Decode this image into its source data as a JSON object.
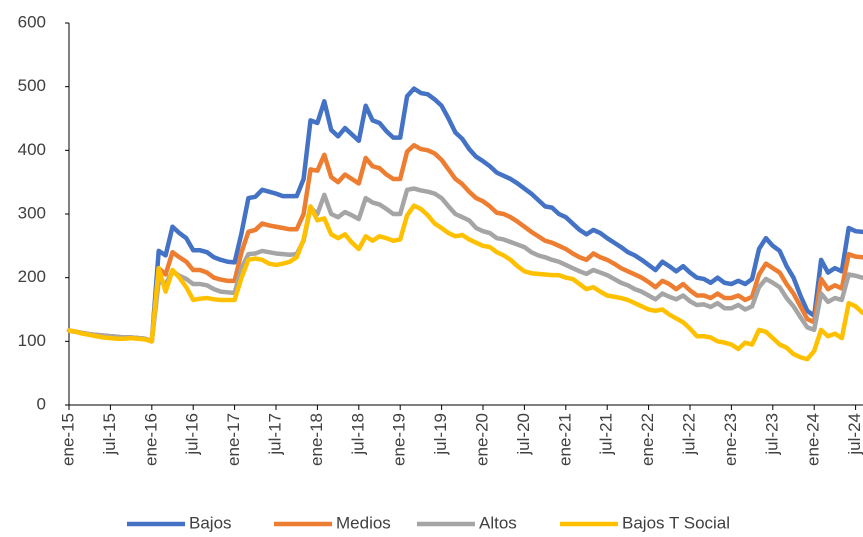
{
  "chart_data": {
    "type": "line",
    "categories": [
      "ene-15",
      null,
      null,
      null,
      null,
      null,
      "jul-15",
      null,
      null,
      null,
      null,
      null,
      "ene-16",
      null,
      null,
      null,
      null,
      null,
      "jul-16",
      null,
      null,
      null,
      null,
      null,
      "ene-17",
      null,
      null,
      null,
      null,
      null,
      "jul-17",
      null,
      null,
      null,
      null,
      null,
      "ene-18",
      null,
      null,
      null,
      null,
      null,
      "jul-18",
      null,
      null,
      null,
      null,
      null,
      "ene-19",
      null,
      null,
      null,
      null,
      null,
      "jul-19",
      null,
      null,
      null,
      null,
      null,
      "ene-20",
      null,
      null,
      null,
      null,
      null,
      "jul-20",
      null,
      null,
      null,
      null,
      null,
      "ene-21",
      null,
      null,
      null,
      null,
      null,
      "jul-21",
      null,
      null,
      null,
      null,
      null,
      "ene-22",
      null,
      null,
      null,
      null,
      null,
      "jul-22",
      null,
      null,
      null,
      null,
      null,
      "ene-23",
      null,
      null,
      null,
      null,
      null,
      "jul-23",
      null,
      null,
      null,
      null,
      null,
      "ene-24",
      null,
      null,
      null,
      null,
      null,
      "jul-24",
      null
    ],
    "series": [
      {
        "name": "Bajos",
        "color": "#4472c4",
        "values": [
          117,
          115,
          113,
          111,
          110,
          109,
          108,
          107,
          106,
          106,
          105,
          104,
          100,
          242,
          235,
          280,
          270,
          262,
          243,
          243,
          240,
          232,
          228,
          225,
          224,
          270,
          325,
          327,
          338,
          335,
          332,
          328,
          328,
          328,
          355,
          447,
          443,
          477,
          432,
          422,
          435,
          425,
          415,
          470,
          447,
          443,
          430,
          420,
          420,
          485,
          497,
          490,
          488,
          480,
          470,
          450,
          428,
          418,
          402,
          390,
          383,
          375,
          365,
          360,
          355,
          348,
          340,
          332,
          322,
          312,
          310,
          300,
          295,
          285,
          275,
          268,
          275,
          270,
          262,
          255,
          248,
          240,
          235,
          228,
          220,
          212,
          225,
          218,
          210,
          218,
          208,
          200,
          198,
          192,
          200,
          192,
          190,
          195,
          190,
          198,
          245,
          262,
          250,
          242,
          218,
          200,
          172,
          148,
          140,
          228,
          208,
          215,
          210,
          278,
          273,
          272
        ]
      },
      {
        "name": "Medios",
        "color": "#ed7d31",
        "values": [
          117,
          115,
          113,
          111,
          110,
          109,
          108,
          107,
          106,
          106,
          105,
          104,
          100,
          215,
          205,
          240,
          232,
          225,
          212,
          212,
          208,
          200,
          197,
          195,
          195,
          240,
          272,
          275,
          285,
          282,
          280,
          278,
          276,
          276,
          300,
          370,
          368,
          393,
          358,
          350,
          362,
          355,
          348,
          388,
          375,
          372,
          362,
          355,
          355,
          398,
          408,
          402,
          400,
          395,
          385,
          370,
          355,
          347,
          335,
          325,
          320,
          312,
          302,
          300,
          295,
          288,
          280,
          272,
          265,
          258,
          255,
          250,
          245,
          238,
          232,
          228,
          238,
          232,
          228,
          222,
          215,
          210,
          205,
          200,
          193,
          185,
          195,
          190,
          182,
          190,
          180,
          172,
          172,
          168,
          175,
          168,
          168,
          172,
          165,
          170,
          205,
          222,
          215,
          208,
          190,
          175,
          155,
          135,
          130,
          198,
          182,
          188,
          183,
          237,
          233,
          232
        ]
      },
      {
        "name": "Altos",
        "color": "#a5a5a5",
        "values": [
          117,
          115,
          113,
          111,
          110,
          109,
          108,
          107,
          106,
          106,
          105,
          104,
          100,
          195,
          190,
          210,
          203,
          198,
          190,
          190,
          188,
          182,
          178,
          177,
          176,
          215,
          237,
          238,
          242,
          240,
          238,
          237,
          236,
          237,
          258,
          310,
          300,
          330,
          300,
          295,
          303,
          298,
          292,
          325,
          318,
          315,
          308,
          300,
          300,
          338,
          340,
          337,
          335,
          332,
          325,
          312,
          300,
          295,
          290,
          278,
          273,
          270,
          262,
          260,
          256,
          252,
          248,
          240,
          235,
          232,
          228,
          225,
          220,
          215,
          210,
          206,
          212,
          208,
          204,
          198,
          192,
          188,
          182,
          178,
          172,
          166,
          175,
          170,
          166,
          172,
          163,
          157,
          158,
          154,
          160,
          152,
          152,
          157,
          150,
          155,
          185,
          198,
          192,
          185,
          168,
          155,
          138,
          122,
          118,
          175,
          162,
          168,
          165,
          205,
          203,
          200
        ]
      },
      {
        "name": "Bajos T Social",
        "color": "#ffc000",
        "values": [
          117,
          115,
          112,
          110,
          108,
          106,
          105,
          104,
          104,
          105,
          104,
          103,
          100,
          215,
          178,
          212,
          200,
          185,
          165,
          167,
          168,
          166,
          165,
          165,
          165,
          200,
          228,
          230,
          228,
          222,
          220,
          222,
          225,
          232,
          260,
          312,
          290,
          293,
          268,
          262,
          268,
          255,
          245,
          265,
          258,
          265,
          262,
          258,
          260,
          298,
          313,
          308,
          298,
          285,
          278,
          270,
          265,
          267,
          260,
          255,
          250,
          248,
          240,
          235,
          228,
          218,
          210,
          207,
          206,
          205,
          204,
          204,
          200,
          198,
          190,
          182,
          185,
          178,
          172,
          170,
          168,
          165,
          160,
          155,
          150,
          148,
          150,
          142,
          136,
          130,
          120,
          108,
          108,
          106,
          100,
          98,
          95,
          88,
          98,
          95,
          118,
          115,
          105,
          95,
          90,
          80,
          75,
          72,
          85,
          118,
          108,
          112,
          105,
          160,
          155,
          145
        ]
      }
    ],
    "ylim": [
      0,
      600
    ],
    "yticks": [
      0,
      100,
      200,
      300,
      400,
      500,
      600
    ],
    "grid": false,
    "legend": "bottom"
  }
}
